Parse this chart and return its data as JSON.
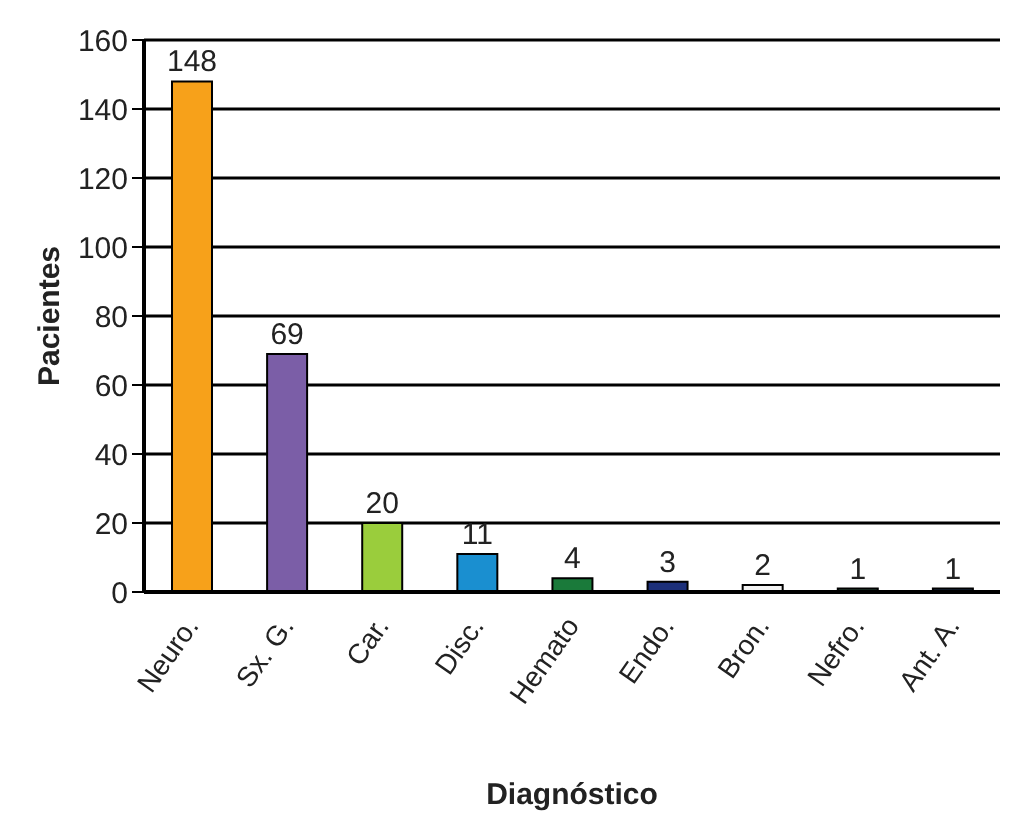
{
  "chart_data": {
    "type": "bar",
    "xlabel": "Diagnóstico",
    "ylabel": "Pacientes",
    "categories": [
      "Neuro.",
      "Sx. G.",
      "Car.",
      "Disc.",
      "Hemato",
      "Endo.",
      "Bron.",
      "Nefro.",
      "Ant. A."
    ],
    "values": [
      148,
      69,
      20,
      11,
      4,
      3,
      2,
      1,
      1
    ],
    "colors": [
      "#f7a11a",
      "#7b5ea7",
      "#9acd3c",
      "#1a8fd0",
      "#1a7a3a",
      "#1c2f7a",
      "#f2f2f2",
      "#2a4a3a",
      "#1c2f4a"
    ],
    "ylim": [
      0,
      160
    ],
    "yticks": [
      0,
      20,
      40,
      60,
      80,
      100,
      120,
      140,
      160
    ],
    "grid": "y",
    "data_labels": true,
    "legend": false
  }
}
